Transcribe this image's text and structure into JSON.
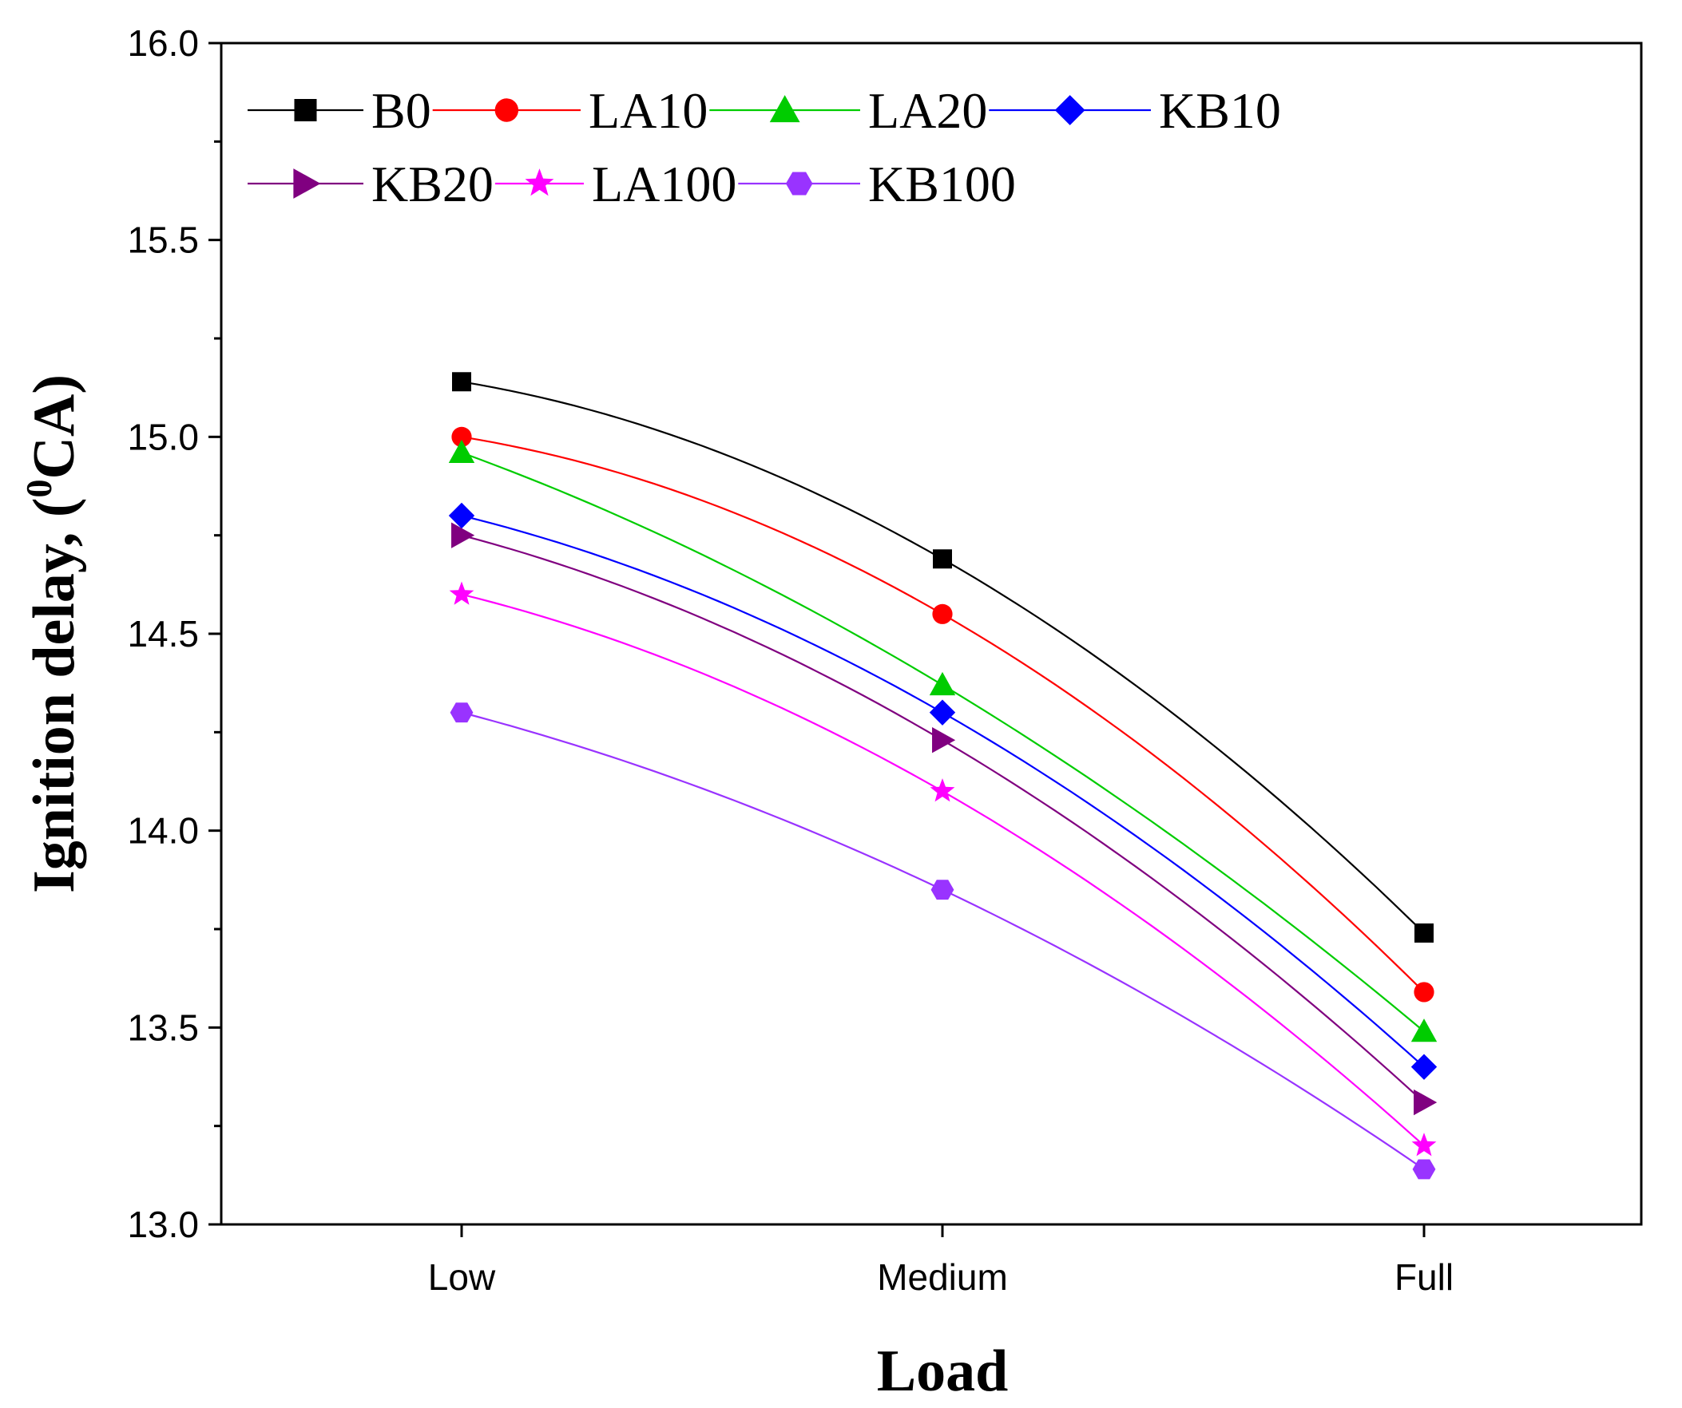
{
  "chart_data": {
    "type": "line",
    "title": "",
    "xlabel": "Load",
    "ylabel_main": "Ignition delay, (",
    "ylabel_sup": "0",
    "ylabel_unit": "CA)",
    "categories": [
      "Low",
      "Medium",
      "Full"
    ],
    "ylim": [
      13.0,
      16.0
    ],
    "yticks": [
      "13.0",
      "13.5",
      "14.0",
      "14.5",
      "15.0",
      "15.5",
      "16.0"
    ],
    "grid": false,
    "legend_position": "top-left",
    "series": [
      {
        "name": "B0",
        "values": [
          15.14,
          14.69,
          13.74
        ],
        "color": "#000000",
        "marker": "square"
      },
      {
        "name": "LA10",
        "values": [
          15.0,
          14.55,
          13.59
        ],
        "color": "#ff0000",
        "marker": "circle"
      },
      {
        "name": "LA20",
        "values": [
          14.96,
          14.37,
          13.49
        ],
        "color": "#00cc00",
        "marker": "triangle-up"
      },
      {
        "name": "KB10",
        "values": [
          14.8,
          14.3,
          13.4
        ],
        "color": "#0000ff",
        "marker": "diamond"
      },
      {
        "name": "KB20",
        "values": [
          14.75,
          14.23,
          13.31
        ],
        "color": "#800080",
        "marker": "triangle-right"
      },
      {
        "name": "LA100",
        "values": [
          14.6,
          14.1,
          13.2
        ],
        "color": "#ff00ff",
        "marker": "star"
      },
      {
        "name": "KB100",
        "values": [
          14.3,
          13.85,
          13.14
        ],
        "color": "#9933ff",
        "marker": "hexagon"
      }
    ]
  }
}
